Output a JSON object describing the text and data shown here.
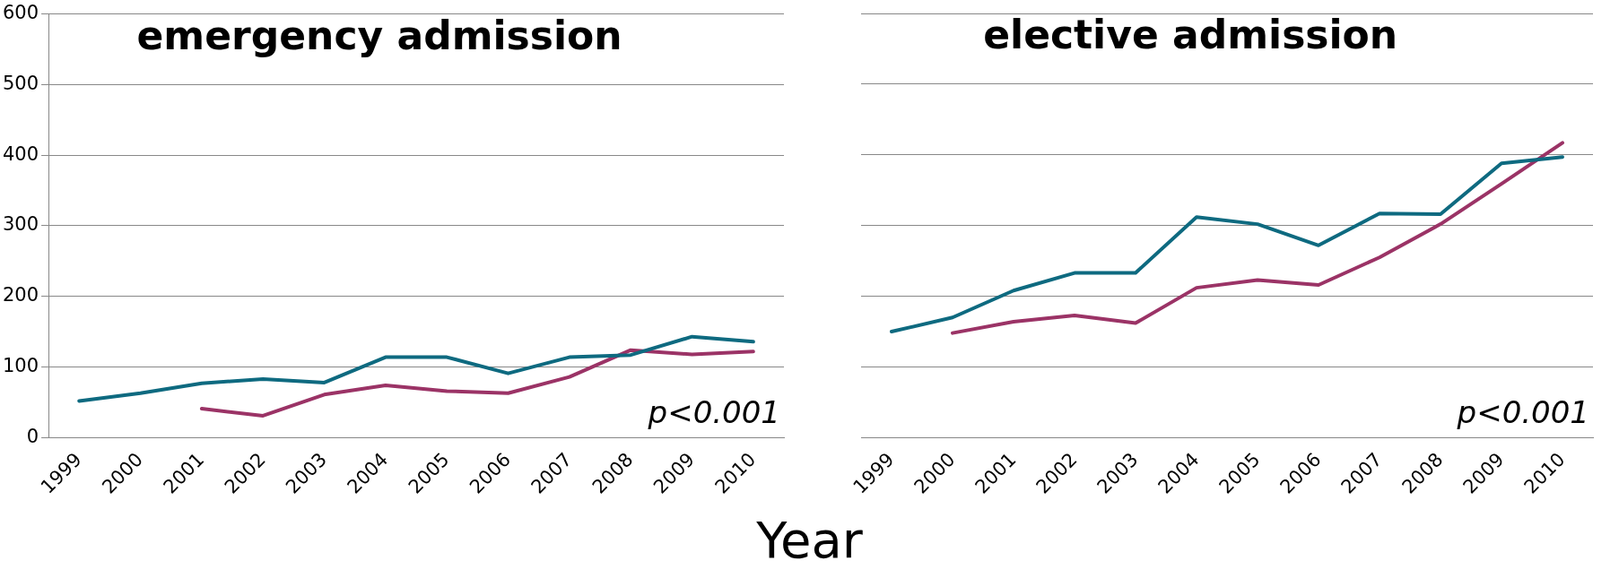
{
  "chart_data": [
    {
      "type": "line",
      "title": "emergency admission",
      "xlabel": "Year",
      "categories": [
        "1999",
        "2000",
        "2001",
        "2002",
        "2003",
        "2004",
        "2005",
        "2006",
        "2007",
        "2008",
        "2009",
        "2010"
      ],
      "series": [
        {
          "color": "#0e6a80",
          "values": [
            52,
            63,
            77,
            83,
            78,
            114,
            114,
            91,
            114,
            117,
            143,
            136
          ]
        },
        {
          "color": "#9b3366",
          "values": [
            null,
            null,
            41,
            31,
            61,
            74,
            66,
            63,
            86,
            124,
            118,
            122
          ]
        }
      ],
      "ylim": [
        0,
        600
      ],
      "yticks": [
        0,
        100,
        200,
        300,
        400,
        500,
        600
      ],
      "grid": "y",
      "legend": false,
      "marker": "none",
      "line_style": "solid",
      "annotations": [
        "p<0.001"
      ]
    },
    {
      "type": "line",
      "title": "elective admission",
      "categories": [
        "1999",
        "2000",
        "2001",
        "2002",
        "2003",
        "2004",
        "2005",
        "2006",
        "2007",
        "2008",
        "2009",
        "2010"
      ],
      "series": [
        {
          "color": "#0e6a80",
          "values": [
            150,
            170,
            208,
            233,
            233,
            312,
            302,
            272,
            317,
            316,
            388,
            397
          ]
        },
        {
          "color": "#9b3366",
          "values": [
            null,
            148,
            164,
            173,
            162,
            212,
            223,
            216,
            255,
            302,
            359,
            417
          ]
        }
      ],
      "ylim": [
        0,
        600
      ],
      "yticks": [
        0,
        100,
        200,
        300,
        400,
        500,
        600
      ],
      "grid": "y",
      "legend": false,
      "marker": "none",
      "line_style": "solid",
      "tick_labels": "x",
      "annotations": [
        "p<0.001"
      ]
    }
  ]
}
